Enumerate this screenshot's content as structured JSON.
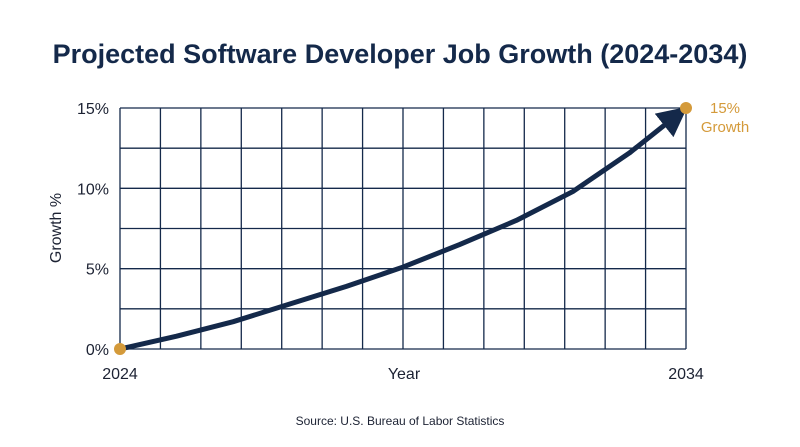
{
  "chart_data": {
    "type": "line",
    "title": "Projected Software Developer Job Growth (2024-2034)",
    "xlabel": "Year",
    "ylabel": "Growth %",
    "x_tick_labels": [
      "2024",
      "2034"
    ],
    "y_tick_labels": [
      "0%",
      "5%",
      "10%",
      "15%"
    ],
    "xlim": [
      2024,
      2034
    ],
    "ylim": [
      0,
      15
    ],
    "grid": true,
    "series": [
      {
        "x": [
          2024,
          2025,
          2026,
          2027,
          2028,
          2029,
          2030,
          2031,
          2032,
          2033,
          2034
        ],
        "y": [
          0,
          0.8,
          1.7,
          2.8,
          3.9,
          5.1,
          6.5,
          8.0,
          9.8,
          12.2,
          15
        ],
        "color": "#14294a"
      }
    ],
    "endpoint_color": "#d49a3a",
    "annotation": {
      "line1": "15%",
      "line2": "Growth",
      "x": 2034,
      "y": 15
    },
    "source": "Source: U.S. Bureau of Labor Statistics"
  }
}
